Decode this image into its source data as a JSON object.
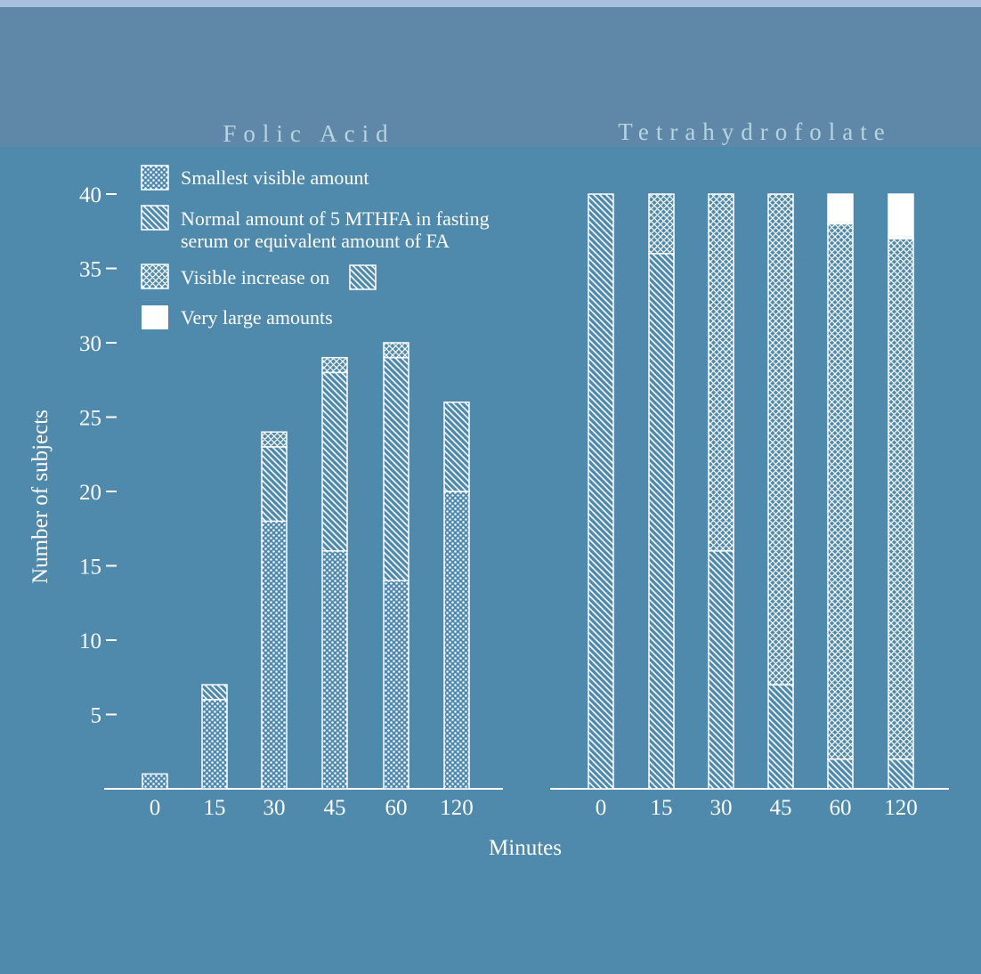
{
  "chart_data": [
    {
      "type": "bar",
      "stacked": true,
      "title": "Folic Acid",
      "xlabel": "Minutes",
      "ylabel": "Number of subjects",
      "ylim": [
        0,
        40
      ],
      "yticks": [
        5,
        10,
        15,
        20,
        25,
        30,
        35,
        40
      ],
      "categories": [
        "0",
        "15",
        "30",
        "45",
        "60",
        "120"
      ],
      "series": [
        {
          "name": "Smallest visible amount",
          "values": [
            1,
            6,
            18,
            16,
            14,
            20
          ]
        },
        {
          "name": "Normal amount of 5 MTHFA in fasting serum or equivalent amount of FA",
          "values": [
            0,
            1,
            5,
            12,
            15,
            6
          ]
        },
        {
          "name": "Visible increase on",
          "values": [
            0,
            0,
            1,
            1,
            1,
            0
          ]
        },
        {
          "name": "Very large amounts",
          "values": [
            0,
            0,
            0,
            0,
            0,
            0
          ]
        }
      ]
    },
    {
      "type": "bar",
      "stacked": true,
      "title": "Tetrahydrofolate",
      "xlabel": "Minutes",
      "ylabel": "Number of subjects",
      "ylim": [
        0,
        40
      ],
      "categories": [
        "0",
        "15",
        "30",
        "45",
        "60",
        "120"
      ],
      "series": [
        {
          "name": "Smallest visible amount",
          "values": [
            0,
            0,
            0,
            0,
            0,
            0
          ]
        },
        {
          "name": "Normal amount of 5 MTHFA in fasting serum or equivalent amount of FA",
          "values": [
            40,
            36,
            16,
            7,
            2,
            2
          ]
        },
        {
          "name": "Visible increase on",
          "values": [
            0,
            4,
            24,
            33,
            36,
            35
          ]
        },
        {
          "name": "Very large amounts",
          "values": [
            0,
            0,
            0,
            0,
            2,
            3
          ]
        }
      ]
    }
  ],
  "legend": [
    {
      "pattern": "dots",
      "label": "Smallest visible amount"
    },
    {
      "pattern": "hatch",
      "label_lines": [
        "Normal amount of 5 MTHFA in fasting",
        "serum or equivalent amount of FA"
      ]
    },
    {
      "pattern": "cross",
      "label": "Visible increase on"
    },
    {
      "pattern": "solid",
      "label": "Very large amounts"
    }
  ],
  "colors": {
    "background_top": "#5f88a8",
    "background_main": "#4f89ab",
    "top_edge": "#a9bfe0",
    "ink": "#ffffff",
    "title": "#b8d4e2"
  }
}
